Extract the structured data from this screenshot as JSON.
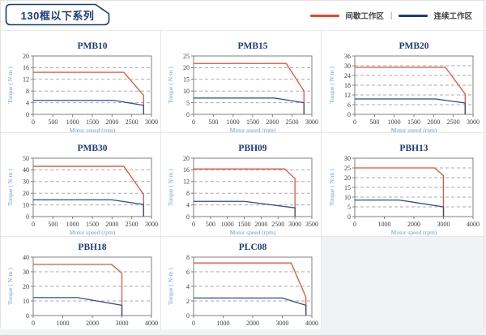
{
  "header": {
    "title": "130框以下系列",
    "legend_separator": "|",
    "legend": [
      {
        "label": "间歇工作区",
        "color": "#e8472c"
      },
      {
        "label": "连续工作区",
        "color": "#1f3d7a"
      }
    ]
  },
  "colors": {
    "intermittent": "#e8503a",
    "continuous": "#2e4b88",
    "gridline": "#ababab",
    "frame": "#7f7f7f",
    "navy": "#1e3c78"
  },
  "chart_data": [
    {
      "type": "line",
      "title": "PMB10",
      "xlabel": "Motor speed (rpm)",
      "ylabel": "Torque ( N·m )",
      "xlim": [
        0,
        3000
      ],
      "ylim": [
        0,
        20
      ],
      "xtick_step": 500,
      "ytick_step": 4,
      "series": [
        {
          "name": "间歇工作区",
          "color": "#e8503a",
          "points": [
            [
              0,
              14.4
            ],
            [
              2300,
              14.4
            ],
            [
              2800,
              6.5
            ],
            [
              2800,
              0
            ]
          ]
        },
        {
          "name": "连续工作区",
          "color": "#2e4b88",
          "points": [
            [
              0,
              4.8
            ],
            [
              2050,
              4.8
            ],
            [
              2800,
              3.1
            ],
            [
              2800,
              0
            ]
          ]
        }
      ]
    },
    {
      "type": "line",
      "title": "PMB15",
      "xlabel": "Motor speed (rpm)",
      "ylabel": "Torque ( N·m )",
      "xlim": [
        0,
        3000
      ],
      "ylim": [
        0,
        25
      ],
      "xtick_step": 500,
      "ytick_step": 5,
      "series": [
        {
          "name": "间歇工作区",
          "color": "#e8503a",
          "points": [
            [
              0,
              21.8
            ],
            [
              2350,
              21.8
            ],
            [
              2800,
              10
            ],
            [
              2800,
              0
            ]
          ]
        },
        {
          "name": "连续工作区",
          "color": "#2e4b88",
          "points": [
            [
              0,
              7
            ],
            [
              2050,
              7
            ],
            [
              2800,
              5
            ],
            [
              2800,
              0
            ]
          ]
        }
      ]
    },
    {
      "type": "line",
      "title": "PMB20",
      "xlabel": "Motor speed (rpm)",
      "ylabel": "Torque ( N·m )",
      "xlim": [
        0,
        3000
      ],
      "ylim": [
        0,
        36
      ],
      "xtick_step": 500,
      "ytick_step": 6,
      "series": [
        {
          "name": "间歇工作区",
          "color": "#e8503a",
          "points": [
            [
              0,
              29
            ],
            [
              2300,
              29
            ],
            [
              2800,
              12.5
            ],
            [
              2800,
              0
            ]
          ]
        },
        {
          "name": "连续工作区",
          "color": "#2e4b88",
          "points": [
            [
              0,
              9.5
            ],
            [
              2050,
              9.5
            ],
            [
              2800,
              7
            ],
            [
              2800,
              0
            ]
          ]
        }
      ]
    },
    {
      "type": "line",
      "title": "PMB30",
      "xlabel": "Motor speed (rpm)",
      "ylabel": "Torque ( N·m )",
      "xlim": [
        0,
        3000
      ],
      "ylim": [
        0,
        50
      ],
      "xtick_step": 500,
      "ytick_step": 10,
      "series": [
        {
          "name": "间歇工作区",
          "color": "#e8503a",
          "points": [
            [
              0,
              43
            ],
            [
              2300,
              43
            ],
            [
              2800,
              19
            ],
            [
              2800,
              0
            ]
          ]
        },
        {
          "name": "连续工作区",
          "color": "#2e4b88",
          "points": [
            [
              0,
              14.3
            ],
            [
              2000,
              14.3
            ],
            [
              2800,
              10.3
            ],
            [
              2800,
              0
            ]
          ]
        }
      ]
    },
    {
      "type": "line",
      "title": "PBH09",
      "xlabel": "Motor speed (rpm)",
      "ylabel": "Torque ( N·m )",
      "xlim": [
        0,
        3500
      ],
      "ylim": [
        0,
        20
      ],
      "xtick_step": 500,
      "ytick_step": 4,
      "series": [
        {
          "name": "间歇工作区",
          "color": "#e8503a",
          "points": [
            [
              0,
              16.3
            ],
            [
              2700,
              16.3
            ],
            [
              3000,
              13
            ],
            [
              3000,
              0
            ]
          ]
        },
        {
          "name": "连续工作区",
          "color": "#2e4b88",
          "points": [
            [
              0,
              5.2
            ],
            [
              1500,
              5.2
            ],
            [
              3000,
              3
            ],
            [
              3000,
              0
            ]
          ]
        }
      ]
    },
    {
      "type": "line",
      "title": "PBH13",
      "xlabel": "Motor speed (rpm)",
      "ylabel": "Torque ( N·m )",
      "xlim": [
        0,
        4000
      ],
      "ylim": [
        0,
        30
      ],
      "xtick_step": 1000,
      "ytick_step": 5,
      "series": [
        {
          "name": "间歇工作区",
          "color": "#e8503a",
          "points": [
            [
              0,
              25
            ],
            [
              2700,
              25
            ],
            [
              3000,
              21
            ],
            [
              3000,
              0
            ]
          ]
        },
        {
          "name": "连续工作区",
          "color": "#2e4b88",
          "points": [
            [
              0,
              8.5
            ],
            [
              1500,
              8.5
            ],
            [
              3000,
              5
            ],
            [
              3000,
              0
            ]
          ]
        }
      ]
    },
    {
      "type": "line",
      "title": "PBH18",
      "xlabel": "Motor speed (rpm)",
      "ylabel": "Torque ( N·m )",
      "xlim": [
        0,
        4000
      ],
      "ylim": [
        0,
        40
      ],
      "xtick_step": 1000,
      "ytick_step": 10,
      "series": [
        {
          "name": "间歇工作区",
          "color": "#e8503a",
          "points": [
            [
              0,
              35
            ],
            [
              2650,
              35
            ],
            [
              3000,
              29
            ],
            [
              3000,
              0
            ]
          ]
        },
        {
          "name": "连续工作区",
          "color": "#2e4b88",
          "points": [
            [
              0,
              12.3
            ],
            [
              1500,
              12.3
            ],
            [
              3000,
              7
            ],
            [
              3000,
              0
            ]
          ]
        }
      ]
    },
    {
      "type": "line",
      "title": "PLC08",
      "xlabel": "Motor speed (rpm)",
      "ylabel": "Torque ( N·m )",
      "xlim": [
        0,
        4000
      ],
      "ylim": [
        0,
        8
      ],
      "xtick_step": 1000,
      "ytick_step": 2,
      "series": [
        {
          "name": "间歇工作区",
          "color": "#e8503a",
          "points": [
            [
              0,
              7.2
            ],
            [
              3300,
              7.2
            ],
            [
              3800,
              2.5
            ],
            [
              3800,
              0
            ]
          ]
        },
        {
          "name": "连续工作区",
          "color": "#2e4b88",
          "points": [
            [
              0,
              2.4
            ],
            [
              3000,
              2.4
            ],
            [
              3800,
              1.4
            ],
            [
              3800,
              0
            ]
          ]
        }
      ]
    }
  ]
}
